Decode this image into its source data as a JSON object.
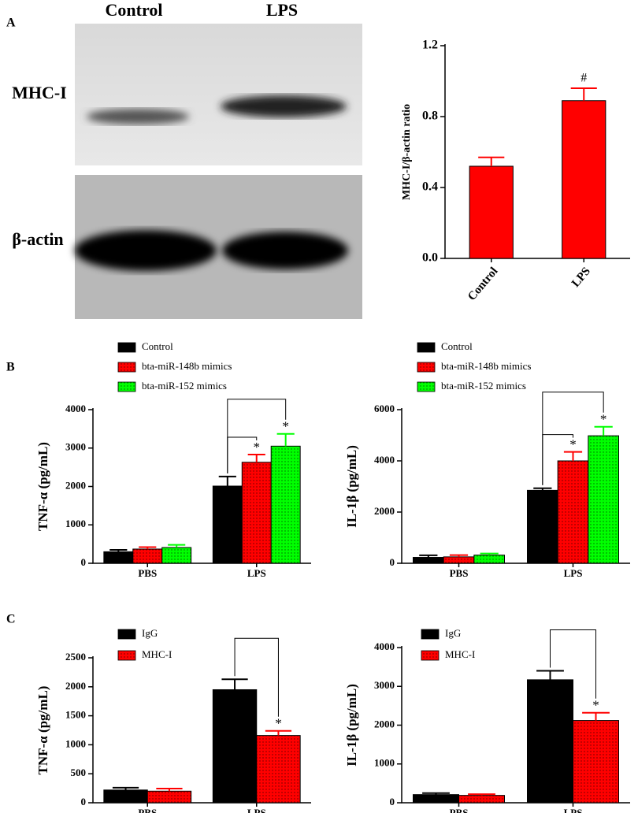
{
  "panel_labels": [
    "A",
    "B",
    "C"
  ],
  "blot": {
    "lanes": [
      "Control",
      "LPS"
    ],
    "rows": [
      "MHC-I",
      "β-actin"
    ]
  },
  "chart_data": [
    {
      "type": "bar",
      "ylabel": "MHC-I/β-actin ratio",
      "categories": [
        "Control",
        "LPS"
      ],
      "values": [
        0.52,
        0.89
      ],
      "errors": [
        0.05,
        0.07
      ],
      "color": "#ff0000",
      "significance": [
        null,
        "#"
      ],
      "ylim": [
        0,
        1.2
      ],
      "yticks": [
        {
          "value": 0,
          "label": "0.0"
        },
        0.4,
        0.8,
        1.2
      ]
    },
    {
      "type": "grouped_bar",
      "ylabel": "TNF-α  (pg/mL)",
      "categories": [
        "PBS",
        "LPS"
      ],
      "series": [
        {
          "name": "Control",
          "color": "#000000",
          "values": [
            300,
            2010
          ],
          "errors": [
            50,
            250
          ]
        },
        {
          "name": "bta-miR-148b mimics",
          "color": "#ff0000",
          "pattern": "dotted",
          "values": [
            370,
            2630
          ],
          "errors": [
            50,
            200
          ],
          "significance": [
            null,
            "*"
          ]
        },
        {
          "name": "bta-miR-152 mimics",
          "color": "#00ff00",
          "pattern": "dotted",
          "values": [
            410,
            3050
          ],
          "errors": [
            70,
            320
          ],
          "significance": [
            null,
            "*"
          ]
        }
      ],
      "ylim": [
        0,
        4000
      ],
      "yticks": [
        0,
        1000,
        2000,
        3000,
        4000
      ]
    },
    {
      "type": "grouped_bar",
      "ylabel": "IL-1β  (pg/mL)",
      "categories": [
        "PBS",
        "LPS"
      ],
      "series": [
        {
          "name": "Control",
          "color": "#000000",
          "values": [
            230,
            2850
          ],
          "errors": [
            80,
            80
          ]
        },
        {
          "name": "bta-miR-148b mimics",
          "color": "#ff0000",
          "pattern": "dotted",
          "values": [
            250,
            4000
          ],
          "errors": [
            70,
            350
          ],
          "significance": [
            null,
            "*"
          ]
        },
        {
          "name": "bta-miR-152 mimics",
          "color": "#00ff00",
          "pattern": "dotted",
          "values": [
            320,
            4980
          ],
          "errors": [
            60,
            350
          ],
          "significance": [
            null,
            "*"
          ]
        }
      ],
      "ylim": [
        0,
        6000
      ],
      "yticks": [
        0,
        2000,
        4000,
        6000
      ]
    },
    {
      "type": "grouped_bar",
      "ylabel": "TNF-α  (pg/mL)",
      "categories": [
        "PBS",
        "LPS"
      ],
      "series": [
        {
          "name": "IgG",
          "color": "#000000",
          "values": [
            220,
            1950
          ],
          "errors": [
            40,
            180
          ]
        },
        {
          "name": "MHC-I",
          "color": "#ff0000",
          "pattern": "dotted",
          "values": [
            200,
            1160
          ],
          "errors": [
            45,
            80
          ],
          "significance": [
            null,
            "*"
          ]
        }
      ],
      "ylim": [
        0,
        2500
      ],
      "yticks": [
        0,
        500,
        1000,
        1500,
        2000,
        2500
      ]
    },
    {
      "type": "grouped_bar",
      "ylabel": "IL-1β  (pg/mL)",
      "categories": [
        "PBS",
        "LPS"
      ],
      "series": [
        {
          "name": "IgG",
          "color": "#000000",
          "values": [
            210,
            3170
          ],
          "errors": [
            40,
            230
          ]
        },
        {
          "name": "MHC-I",
          "color": "#ff0000",
          "pattern": "dotted",
          "values": [
            190,
            2120
          ],
          "errors": [
            30,
            200
          ],
          "significance": [
            null,
            "*"
          ]
        }
      ],
      "ylim": [
        0,
        4000
      ],
      "yticks": [
        0,
        1000,
        2000,
        3000,
        4000
      ]
    }
  ]
}
